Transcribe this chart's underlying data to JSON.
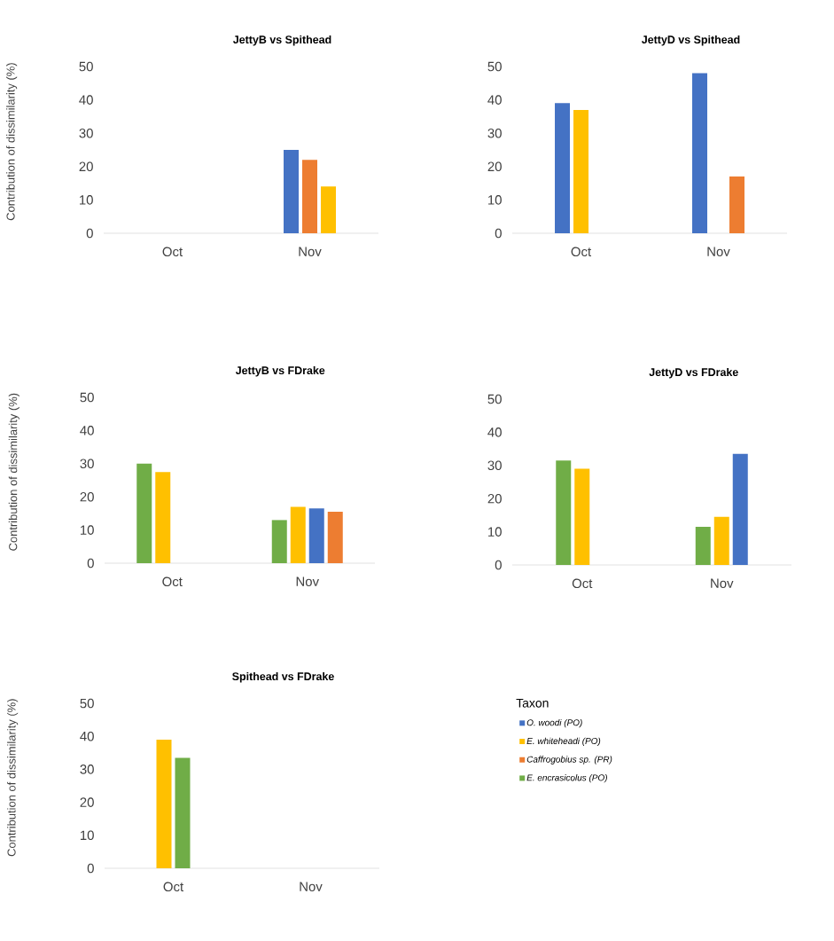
{
  "chart_data": [
    {
      "type": "bar",
      "title": "JettyB vs Spithead",
      "ylabel": "Contribution of dissimilarity (%)",
      "categories": [
        "Oct",
        "Nov"
      ],
      "ylim": [
        0,
        50
      ],
      "yticks": [
        0,
        10,
        20,
        30,
        40,
        50
      ],
      "series": [
        {
          "color": "#4472c4",
          "values": [
            null,
            25
          ]
        },
        {
          "color": "#ed7d31",
          "values": [
            null,
            22
          ]
        },
        {
          "color": "#ffc000",
          "values": [
            null,
            14
          ]
        }
      ]
    },
    {
      "type": "bar",
      "title": "JettyD vs Spithead",
      "categories": [
        "Oct",
        "Nov"
      ],
      "ylim": [
        0,
        50
      ],
      "yticks": [
        0,
        10,
        20,
        30,
        40,
        50
      ],
      "series": [
        {
          "color": "#4472c4",
          "values": [
            39,
            48
          ]
        },
        {
          "color": "#ffc000",
          "values": [
            37,
            null
          ]
        },
        {
          "color": "#ed7d31",
          "values": [
            null,
            17
          ]
        }
      ]
    },
    {
      "type": "bar",
      "title": "JettyB vs FDrake",
      "ylabel": "Contribution of dissimilarity (%)",
      "categories": [
        "Oct",
        "Nov"
      ],
      "ylim": [
        0,
        50
      ],
      "yticks": [
        0,
        10,
        20,
        30,
        40,
        50
      ],
      "series": [
        {
          "color": "#70ad47",
          "values": [
            30,
            13
          ]
        },
        {
          "color": "#ffc000",
          "values": [
            27.5,
            17
          ]
        },
        {
          "color": "#4472c4",
          "values": [
            null,
            16.5
          ]
        },
        {
          "color": "#ed7d31",
          "values": [
            null,
            15.5
          ]
        }
      ]
    },
    {
      "type": "bar",
      "title": "JettyD vs FDrake",
      "categories": [
        "Oct",
        "Nov"
      ],
      "ylim": [
        0,
        50
      ],
      "yticks": [
        0,
        10,
        20,
        30,
        40,
        50
      ],
      "series": [
        {
          "color": "#70ad47",
          "values": [
            31.5,
            11.5
          ]
        },
        {
          "color": "#ffc000",
          "values": [
            29,
            14.5
          ]
        },
        {
          "color": "#4472c4",
          "values": [
            null,
            33.5
          ]
        }
      ]
    },
    {
      "type": "bar",
      "title": "Spithead vs FDrake",
      "ylabel": "Contribution of dissimilarity (%)",
      "categories": [
        "Oct",
        "Nov"
      ],
      "ylim": [
        0,
        50
      ],
      "yticks": [
        0,
        10,
        20,
        30,
        40,
        50
      ],
      "legend": "right",
      "legend_title": "Taxon",
      "series": [
        {
          "name": "O. woodi (PO)",
          "color": "#4472c4",
          "values": [
            null,
            null
          ]
        },
        {
          "name": "E. whiteheadi (PO)",
          "color": "#ffc000",
          "values": [
            39,
            null
          ]
        },
        {
          "name": "Caffrogobius sp. (PR)",
          "color": "#ed7d31",
          "values": [
            null,
            null
          ]
        },
        {
          "name": "E. encrasicolus (PO)",
          "color": "#70ad47",
          "values": [
            33.5,
            null
          ]
        }
      ]
    }
  ]
}
